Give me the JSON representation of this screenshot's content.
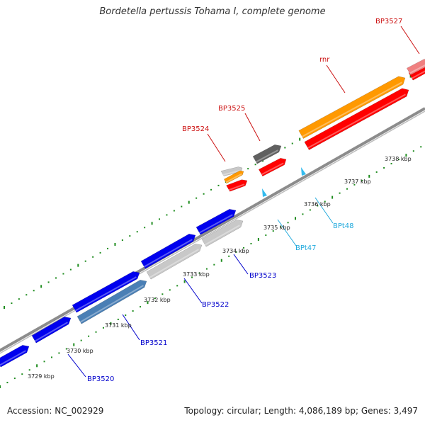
{
  "title": "Bordetella pertussis Tohama I, complete genome",
  "footer": {
    "accession": "Accession: NC_002929",
    "topology": "Topology: circular; Length: 4,086,189 bp; Genes: 3,497"
  },
  "colors": {
    "backbone": "#8c8c8c",
    "tick": "#1e8c1e",
    "label_top": "#cc1111",
    "label_bottom": "#0000cc",
    "label_trna": "#22aadd",
    "blue": "#0000ee",
    "steelblue": "#4a7fb5",
    "lightgray": "#c8c8c8",
    "darkgray": "#606060",
    "orange": "#ff9900",
    "red": "#ff0000",
    "pink": "#f08080",
    "cyan": "#33bbee"
  },
  "scale_labels": [
    "3729 kbp",
    "3730 kbp",
    "3731 kbp",
    "3732 kbp",
    "3733 kbp",
    "3734 kbp",
    "3735 kbp",
    "3736 kbp",
    "3737 kbp",
    "3738 kbp"
  ],
  "gene_labels": {
    "top": [
      "BP3524",
      "BP3525",
      "rnr",
      "BP3527"
    ],
    "bottom": [
      "BP3520",
      "BP3521",
      "BP3522",
      "BP3523"
    ],
    "trna": [
      "BPt47",
      "BPt48"
    ]
  }
}
